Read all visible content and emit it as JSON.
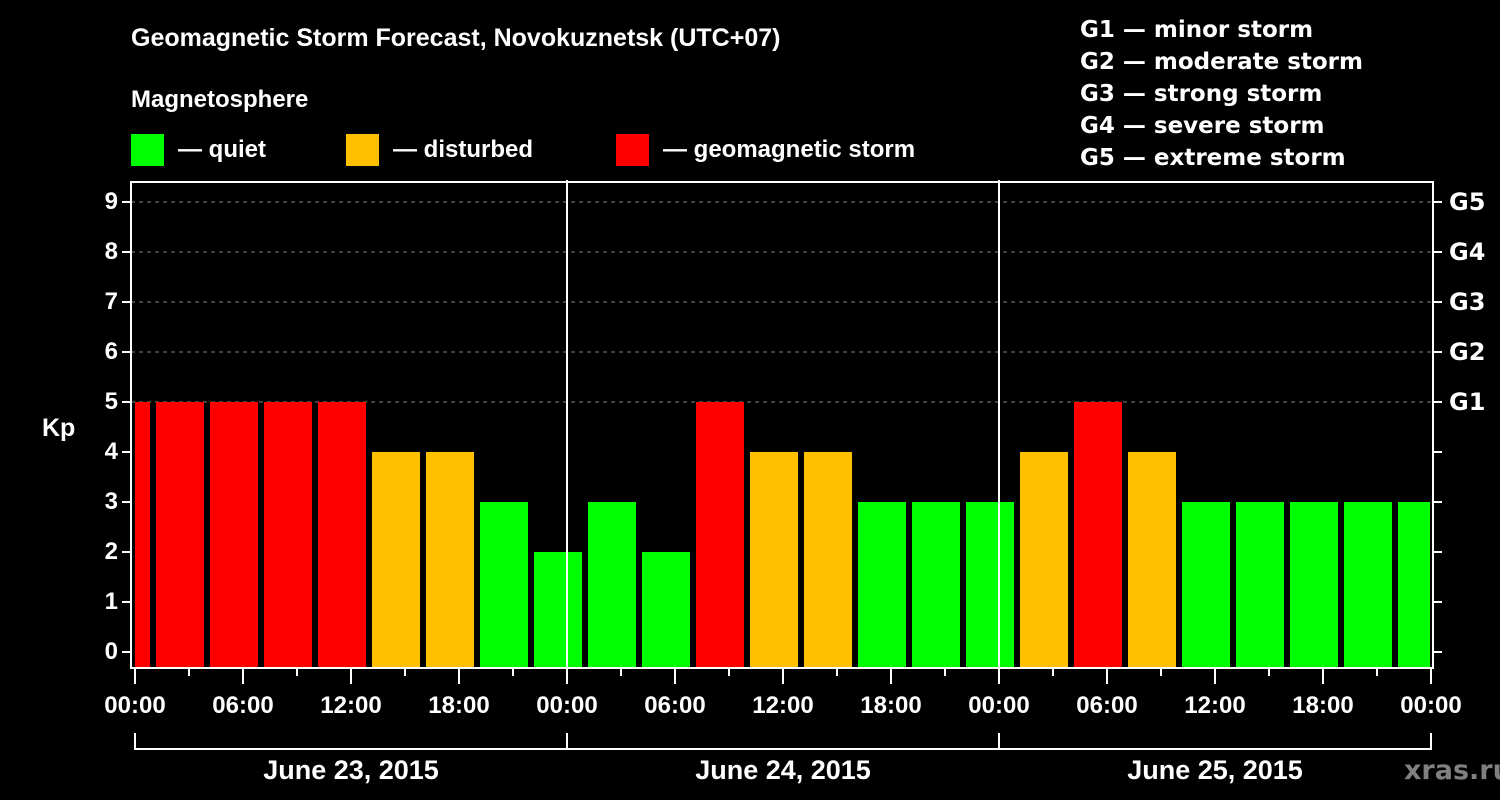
{
  "chart_data": {
    "type": "bar",
    "title": "Geomagnetic Storm Forecast, Novokuznetsk (UTC+07)",
    "subtitle": "Magnetosphere",
    "ylabel": "Kp",
    "ylim": [
      0,
      9
    ],
    "yticks": [
      "0",
      "1",
      "2",
      "3",
      "4",
      "5",
      "6",
      "7",
      "8",
      "9"
    ],
    "right_axis_ticks": [
      {
        "kp": 5,
        "label": "G1"
      },
      {
        "kp": 6,
        "label": "G2"
      },
      {
        "kp": 7,
        "label": "G3"
      },
      {
        "kp": 8,
        "label": "G4"
      },
      {
        "kp": 9,
        "label": "G5"
      }
    ],
    "xtick_labels": [
      "00:00",
      "06:00",
      "12:00",
      "18:00",
      "00:00",
      "06:00",
      "12:00",
      "18:00",
      "00:00",
      "06:00",
      "12:00",
      "18:00",
      "00:00"
    ],
    "date_labels": [
      "June 23, 2015",
      "June 24, 2015",
      "June 25, 2015"
    ],
    "grid": "dashed horizontal at Kp 5-9",
    "legend": [
      {
        "label": "— quiet",
        "color": "#00ff00"
      },
      {
        "label": "— disturbed",
        "color": "#ffc000"
      },
      {
        "label": "— geomagnetic storm",
        "color": "#ff0000"
      }
    ],
    "storm_scale": [
      "G1 — minor storm",
      "G2 — moderate storm",
      "G3 — strong storm",
      "G4 — severe storm",
      "G5 — extreme storm"
    ],
    "interval_hours": 3,
    "bars": [
      {
        "start": "Jun 23 00:00",
        "end": "Jun 23 01:00",
        "kp": 5,
        "level": "storm"
      },
      {
        "start": "Jun 23 01:00",
        "kp": 5,
        "level": "storm"
      },
      {
        "start": "Jun 23 04:00",
        "kp": 5,
        "level": "storm"
      },
      {
        "start": "Jun 23 07:00",
        "kp": 5,
        "level": "storm"
      },
      {
        "start": "Jun 23 10:00",
        "kp": 5,
        "level": "storm"
      },
      {
        "start": "Jun 23 13:00",
        "kp": 4,
        "level": "disturbed"
      },
      {
        "start": "Jun 23 16:00",
        "kp": 4,
        "level": "disturbed"
      },
      {
        "start": "Jun 23 19:00",
        "kp": 3,
        "level": "quiet"
      },
      {
        "start": "Jun 23 22:00",
        "kp": 2,
        "level": "quiet"
      },
      {
        "start": "Jun 24 01:00",
        "kp": 3,
        "level": "quiet"
      },
      {
        "start": "Jun 24 04:00",
        "kp": 2,
        "level": "quiet"
      },
      {
        "start": "Jun 24 07:00",
        "kp": 5,
        "level": "storm"
      },
      {
        "start": "Jun 24 10:00",
        "kp": 4,
        "level": "disturbed"
      },
      {
        "start": "Jun 24 13:00",
        "kp": 4,
        "level": "disturbed"
      },
      {
        "start": "Jun 24 16:00",
        "kp": 3,
        "level": "quiet"
      },
      {
        "start": "Jun 24 19:00",
        "kp": 3,
        "level": "quiet"
      },
      {
        "start": "Jun 24 22:00",
        "kp": 3,
        "level": "quiet"
      },
      {
        "start": "Jun 25 01:00",
        "kp": 4,
        "level": "disturbed"
      },
      {
        "start": "Jun 25 04:00",
        "kp": 5,
        "level": "storm"
      },
      {
        "start": "Jun 25 07:00",
        "kp": 4,
        "level": "disturbed"
      },
      {
        "start": "Jun 25 10:00",
        "kp": 3,
        "level": "quiet"
      },
      {
        "start": "Jun 25 13:00",
        "kp": 3,
        "level": "quiet"
      },
      {
        "start": "Jun 25 16:00",
        "kp": 3,
        "level": "quiet"
      },
      {
        "start": "Jun 25 19:00",
        "kp": 3,
        "level": "quiet"
      },
      {
        "start": "Jun 25 22:00",
        "end": "Jun 26 00:00",
        "kp": 3,
        "level": "quiet"
      }
    ]
  },
  "colors": {
    "quiet": "#00ff00",
    "disturbed": "#ffc000",
    "storm": "#ff0000",
    "grid": "#808080",
    "axis": "#ffffff",
    "watermark": "#808080"
  },
  "watermark": "xras.ru"
}
